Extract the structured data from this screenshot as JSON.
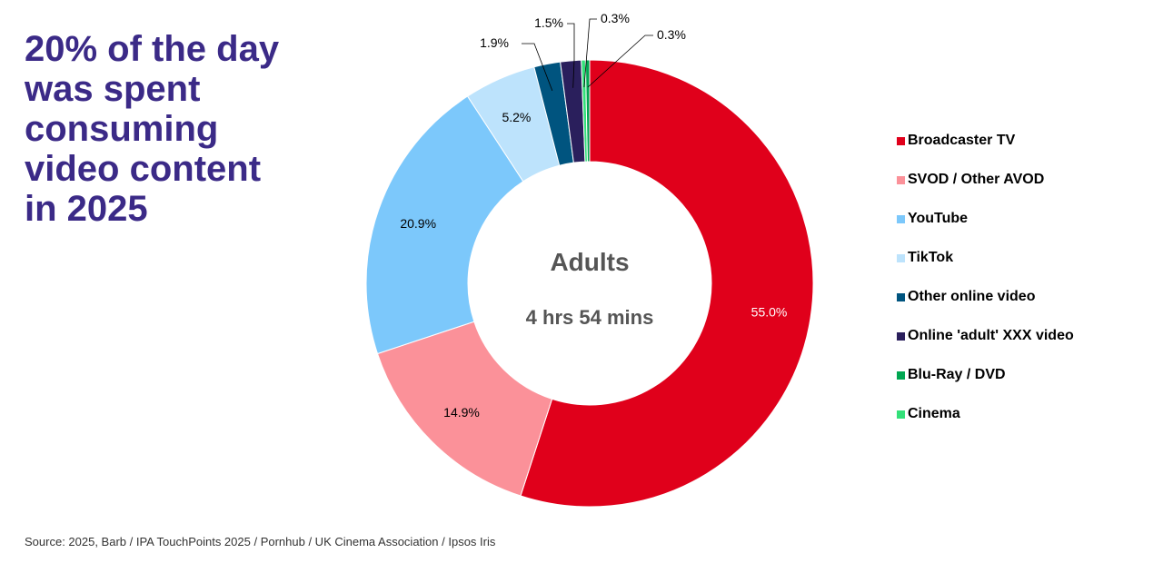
{
  "headline": {
    "lines": [
      "20% of the day",
      "was spent",
      "consuming",
      "video content",
      "in 2025"
    ]
  },
  "center": {
    "title": "Adults",
    "total": "4 hrs 54 mins"
  },
  "source": "Source: 2025, Barb / IPA TouchPoints 2025 / Pornhub / UK Cinema Association / Ipsos Iris",
  "chart_data": {
    "type": "pie",
    "variant": "donut",
    "title": "",
    "legend_position": "right",
    "series": [
      {
        "name": "Broadcaster TV",
        "value": 55.0,
        "label": "55.0%",
        "color": "#e0001b",
        "label_color": "#ffffff"
      },
      {
        "name": "SVOD / Other AVOD",
        "value": 14.9,
        "label": "14.9%",
        "color": "#fb9199",
        "label_color": "#000000"
      },
      {
        "name": "YouTube",
        "value": 20.9,
        "label": "20.9%",
        "color": "#7cc8fb",
        "label_color": "#000000"
      },
      {
        "name": "TikTok",
        "value": 5.2,
        "label": "5.2%",
        "color": "#bde3fc",
        "label_color": "#000000"
      },
      {
        "name": "Other online video",
        "value": 1.9,
        "label": "1.9%",
        "color": "#00547f",
        "label_color": "#000000"
      },
      {
        "name": "Online 'adult' XXX video",
        "value": 1.5,
        "label": "1.5%",
        "color": "#2a1f5c",
        "label_color": "#000000"
      },
      {
        "name": "Blu-Ray / DVD",
        "value": 0.3,
        "label": "0.3%",
        "color": "#00a651",
        "label_color": "#000000"
      },
      {
        "name": "Cinema",
        "value": 0.3,
        "label": "0.3%",
        "color": "#33e079",
        "label_color": "#000000"
      }
    ],
    "draw_order": [
      "Broadcaster TV",
      "SVOD / Other AVOD",
      "YouTube",
      "TikTok",
      "Other online video",
      "Online 'adult' XXX video",
      "Cinema",
      "Blu-Ray / DVD"
    ]
  }
}
